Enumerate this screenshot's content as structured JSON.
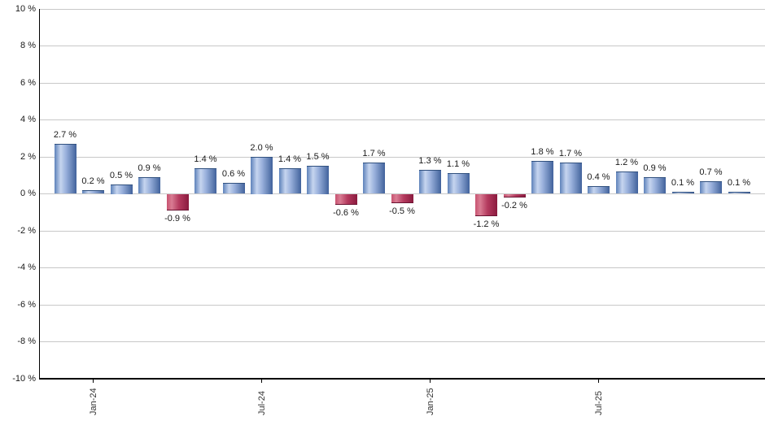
{
  "chart_data": {
    "type": "bar",
    "title": "",
    "xlabel": "",
    "ylabel": "",
    "ylim": [
      -10,
      10
    ],
    "y_tick_step": 2,
    "grid": true,
    "legend": false,
    "y_tick_labels": [
      "10 %",
      "8 %",
      "6 %",
      "4 %",
      "2 %",
      "0 %",
      "-2 %",
      "-4 %",
      "-6 %",
      "-8 %",
      "-10 %"
    ],
    "x_tick_labels": [
      {
        "label": "Jan-24",
        "bar_index": 1
      },
      {
        "label": "Jul-24",
        "bar_index": 7
      },
      {
        "label": "Jan-25",
        "bar_index": 13
      },
      {
        "label": "Jul-25",
        "bar_index": 19
      }
    ],
    "values": [
      2.7,
      0.2,
      0.5,
      0.9,
      -0.9,
      1.4,
      0.6,
      2.0,
      1.4,
      1.5,
      -0.6,
      1.7,
      -0.5,
      1.3,
      1.1,
      -1.2,
      -0.2,
      1.8,
      1.7,
      0.4,
      1.2,
      0.9,
      0.1,
      0.7,
      0.1
    ],
    "bar_labels": [
      "2.7 %",
      "0.2 %",
      "0.5 %",
      "0.9 %",
      "-0.9 %",
      "1.4 %",
      "0.6 %",
      "2.0 %",
      "1.4 %",
      "1.5 %",
      "-0.6 %",
      "1.7 %",
      "-0.5 %",
      "1.3 %",
      "1.1 %",
      "-1.2 %",
      "-0.2 %",
      "1.8 %",
      "1.7 %",
      "0.4 %",
      "1.2 %",
      "0.9 %",
      "0.1 %",
      "0.7 %",
      "0.1 %"
    ]
  },
  "colors": {
    "positive_gradient": [
      "#5e82ba",
      "#c6d5ef",
      "#9ab1dc",
      "#41629c"
    ],
    "negative_gradient": [
      "#c85370",
      "#d97c93",
      "#b53b5f",
      "#8a1a3e"
    ],
    "positive_edge": "#31517f",
    "negative_edge": "#691231",
    "gridline": "#c8c8c8",
    "axis": "#000000",
    "label_text": "#1a1a1a",
    "tick_label_text": "#333333"
  }
}
